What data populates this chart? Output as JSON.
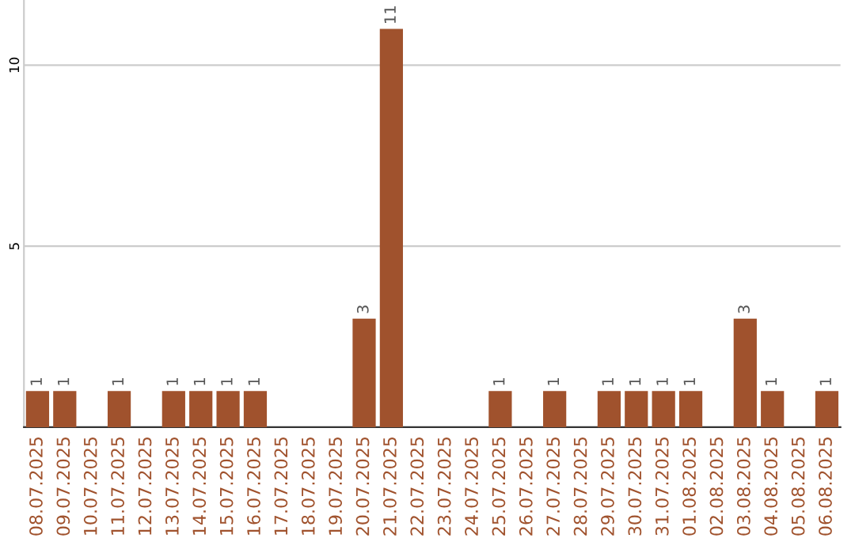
{
  "chart_data": {
    "type": "bar",
    "categories": [
      "08.07.2025",
      "09.07.2025",
      "10.07.2025",
      "11.07.2025",
      "12.07.2025",
      "13.07.2025",
      "14.07.2025",
      "15.07.2025",
      "16.07.2025",
      "17.07.2025",
      "18.07.2025",
      "19.07.2025",
      "20.07.2025",
      "21.07.2025",
      "22.07.2025",
      "23.07.2025",
      "24.07.2025",
      "25.07.2025",
      "26.07.2025",
      "27.07.2025",
      "28.07.2025",
      "29.07.2025",
      "30.07.2025",
      "31.07.2025",
      "01.08.2025",
      "02.08.2025",
      "03.08.2025",
      "04.08.2025",
      "05.08.2025",
      "06.08.2025"
    ],
    "values": [
      1,
      1,
      0,
      1,
      0,
      1,
      1,
      1,
      1,
      0,
      0,
      0,
      3,
      11,
      0,
      0,
      0,
      1,
      0,
      1,
      0,
      1,
      1,
      1,
      1,
      0,
      3,
      1,
      0,
      1
    ],
    "value_labels": [
      "1",
      "1",
      null,
      "1",
      null,
      "1",
      "1",
      "1",
      "1",
      null,
      null,
      null,
      "3",
      "11",
      null,
      null,
      null,
      "1",
      null,
      "1",
      null,
      "1",
      "1",
      "1",
      "1",
      null,
      "3",
      "1",
      null,
      "1"
    ],
    "color": "#a0522d",
    "ylim": [
      0,
      11.8
    ],
    "yticks": [
      5,
      10
    ],
    "grid": "y"
  }
}
